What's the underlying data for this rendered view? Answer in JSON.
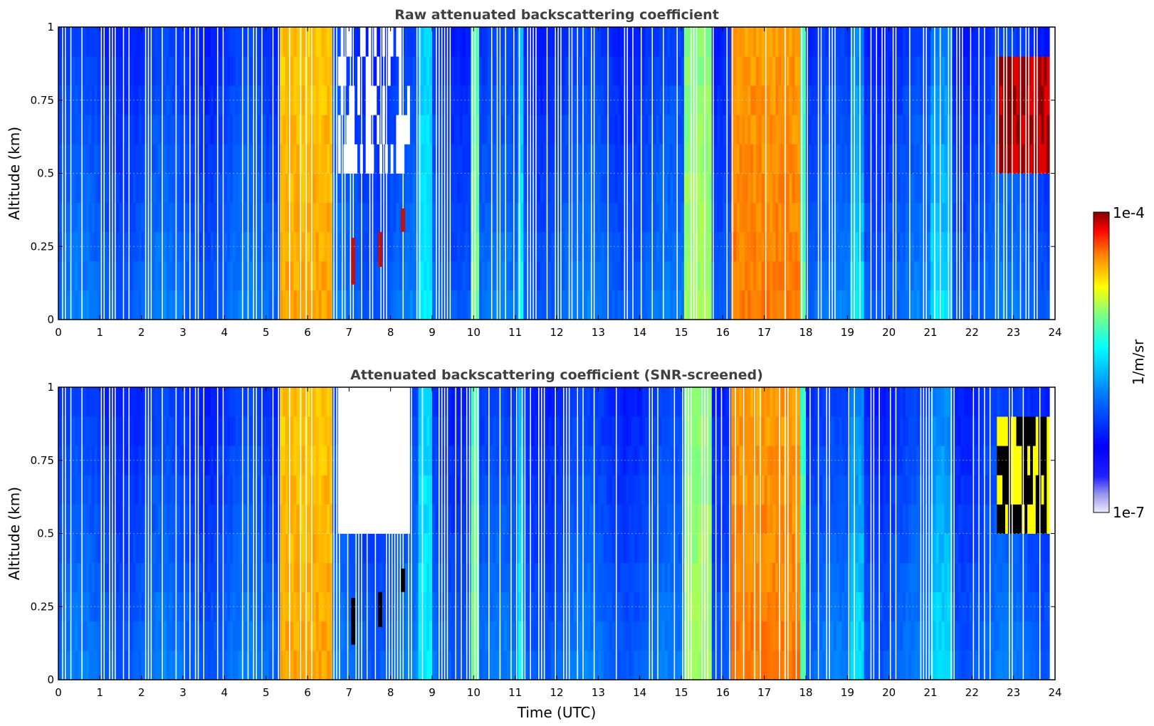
{
  "chart_data": [
    {
      "type": "heatmap",
      "title": "Raw attenuated backscattering coefficient",
      "xlabel": "",
      "ylabel": "Altitude (km)",
      "xlim": [
        0,
        24
      ],
      "ylim": [
        0,
        1
      ],
      "xticks": [
        "0",
        "1",
        "2",
        "3",
        "4",
        "5",
        "6",
        "7",
        "8",
        "9",
        "10",
        "11",
        "12",
        "13",
        "14",
        "15",
        "16",
        "17",
        "18",
        "19",
        "20",
        "21",
        "22",
        "23",
        "24"
      ],
      "yticks": [
        "0",
        "0.25",
        "0.5",
        "0.75",
        "1"
      ],
      "grid": true,
      "colormap": "jet",
      "screened": false,
      "data_gaps_white_stripes": true,
      "regions": [
        {
          "t": [
            5.35,
            6.6
          ],
          "level": "high (yellow-red)"
        },
        {
          "t": [
            9.95,
            10.15
          ],
          "level": "medium (green-yellow)"
        },
        {
          "t": [
            15.1,
            15.7
          ],
          "level": "medium-high (green-yellow)"
        },
        {
          "t": [
            16.2,
            17.9
          ],
          "level": "high (orange-red)"
        },
        {
          "t": [
            22.6,
            23.8
          ],
          "alt": [
            0.5,
            0.85
          ],
          "level": "very high (dark red)"
        },
        {
          "t": [
            6.6,
            8.6
          ],
          "alt": [
            0.5,
            1.0
          ],
          "level": "low/noisy (white)"
        }
      ]
    },
    {
      "type": "heatmap",
      "title": "Attenuated backscattering coefficient (SNR-screened)",
      "xlabel": "Time (UTC)",
      "ylabel": "Altitude (km)",
      "xlim": [
        0,
        24
      ],
      "ylim": [
        0,
        1
      ],
      "xticks": [
        "0",
        "1",
        "2",
        "3",
        "4",
        "5",
        "6",
        "7",
        "8",
        "9",
        "10",
        "11",
        "12",
        "13",
        "14",
        "15",
        "16",
        "17",
        "18",
        "19",
        "20",
        "21",
        "22",
        "23",
        "24"
      ],
      "yticks": [
        "0",
        "0.25",
        "0.5",
        "0.75",
        "1"
      ],
      "grid": true,
      "colormap": "jet",
      "screened": true,
      "data_gaps_white_stripes": true,
      "regions": [
        {
          "t": [
            5.35,
            6.6
          ],
          "level": "high (yellow-red)"
        },
        {
          "t": [
            16.2,
            17.9
          ],
          "level": "high (orange-red)"
        },
        {
          "t": [
            22.6,
            23.8
          ],
          "alt": [
            0.5,
            0.85
          ],
          "level": "saturated (black)"
        },
        {
          "t": [
            6.6,
            8.0
          ],
          "alt": [
            0.5,
            1.0
          ],
          "level": "screened (white)"
        }
      ]
    }
  ],
  "colorbar": {
    "label": "1/m/sr",
    "max_label": "1e-4",
    "min_label": "1e-7",
    "log_min": -7,
    "log_max": -4,
    "colors": [
      "#ecebfb",
      "#c9c6f3",
      "#7f7aec",
      "#0000ff",
      "#0080ff",
      "#00ffff",
      "#80ff80",
      "#ffff00",
      "#ff8000",
      "#ff0000",
      "#800000"
    ]
  }
}
